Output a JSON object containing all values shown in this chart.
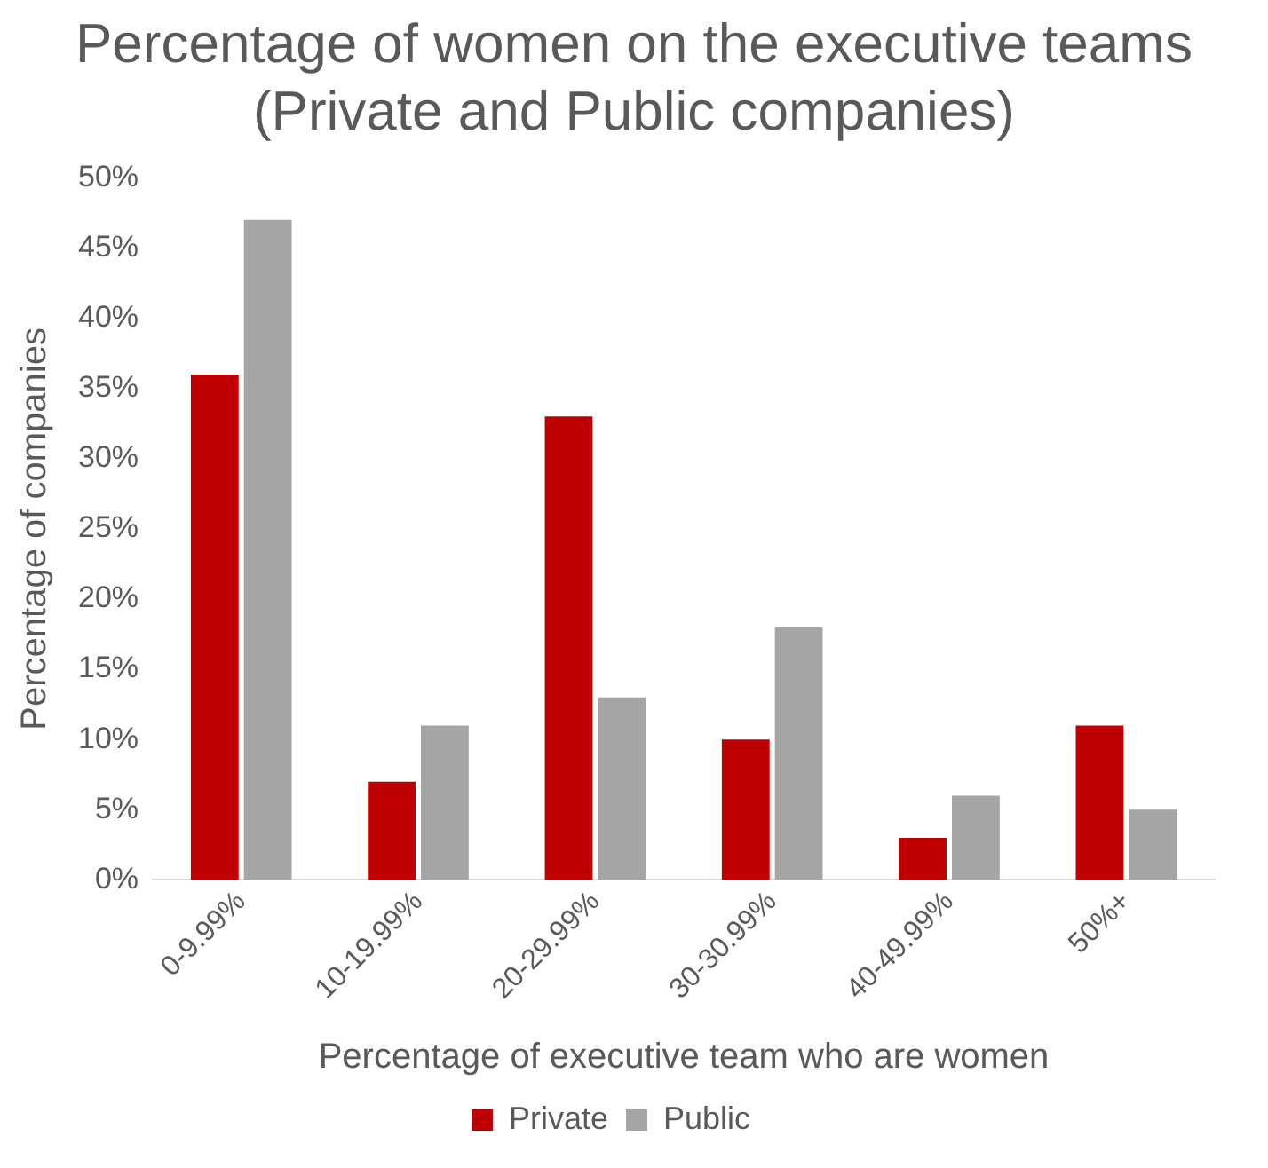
{
  "chart_data": {
    "type": "bar",
    "title": "Percentage of women on the executive teams (Private and Public companies)",
    "xlabel": "Percentage of executive team who are women",
    "ylabel": "Percentage of companies",
    "categories": [
      "0-9.99%",
      "10-19.99%",
      "20-29.99%",
      "30-30.99%",
      "40-49.99%",
      "50%+"
    ],
    "series": [
      {
        "name": "Private",
        "color": "#c00000",
        "values": [
          36,
          7,
          33,
          10,
          3,
          11
        ]
      },
      {
        "name": "Public",
        "color": "#a5a5a5",
        "values": [
          47,
          11,
          13,
          18,
          6,
          5
        ]
      }
    ],
    "ylim": [
      0,
      50
    ],
    "yticks": [
      {
        "value": 0,
        "label": "0%"
      },
      {
        "value": 5,
        "label": "5%"
      },
      {
        "value": 10,
        "label": "10%"
      },
      {
        "value": 15,
        "label": "15%"
      },
      {
        "value": 20,
        "label": "20%"
      },
      {
        "value": 25,
        "label": "25%"
      },
      {
        "value": 30,
        "label": "30%"
      },
      {
        "value": 35,
        "label": "35%"
      },
      {
        "value": 40,
        "label": "40%"
      },
      {
        "value": 45,
        "label": "45%"
      },
      {
        "value": 50,
        "label": "50%"
      }
    ],
    "grid": false,
    "legend": "bottom"
  }
}
